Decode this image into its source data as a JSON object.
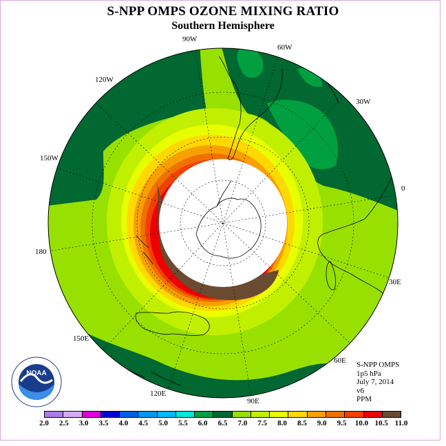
{
  "title": "S-NPP OMPS OZONE MIXING RATIO",
  "subtitle": "Southern Hemisphere",
  "longitude_labels": [
    "90W",
    "60W",
    "30W",
    "0",
    "30E",
    "60E",
    "90E",
    "120E",
    "150E",
    "180",
    "150W",
    "120W"
  ],
  "info": {
    "instrument": "S-NPP OMPS",
    "level": "1p5 hPa",
    "date": "July 7, 2014",
    "version": "v6",
    "units": "PPM"
  },
  "logo_text": "NOAA",
  "colorbar": {
    "ticks": [
      "2.0",
      "2.5",
      "3.0",
      "3.5",
      "4.0",
      "4.5",
      "5.0",
      "5.5",
      "6.0",
      "6.5",
      "7.0",
      "7.5",
      "8.0",
      "8.5",
      "9.0",
      "9.5",
      "10.0",
      "10.5",
      "11.0"
    ],
    "colors": [
      "#b07ae8",
      "#d4aaf0",
      "#e000e0",
      "#0000d8",
      "#0060e8",
      "#0098f0",
      "#00b8f8",
      "#00e8d8",
      "#00a040",
      "#006830",
      "#98e000",
      "#c0f000",
      "#e8ff00",
      "#ffd800",
      "#f8a000",
      "#f07000",
      "#f04000",
      "#ee0000",
      "#6b4a32"
    ]
  },
  "map_colors": {
    "c65": "#006830",
    "c60": "#00a040",
    "c70": "#98e000",
    "c75": "#c0f000",
    "c80": "#e8ff00",
    "c85": "#ffd800",
    "c90": "#f8a000",
    "c95": "#f07000",
    "c100": "#f04000",
    "c105": "#ee0000",
    "c110": "#6b4a32"
  }
}
